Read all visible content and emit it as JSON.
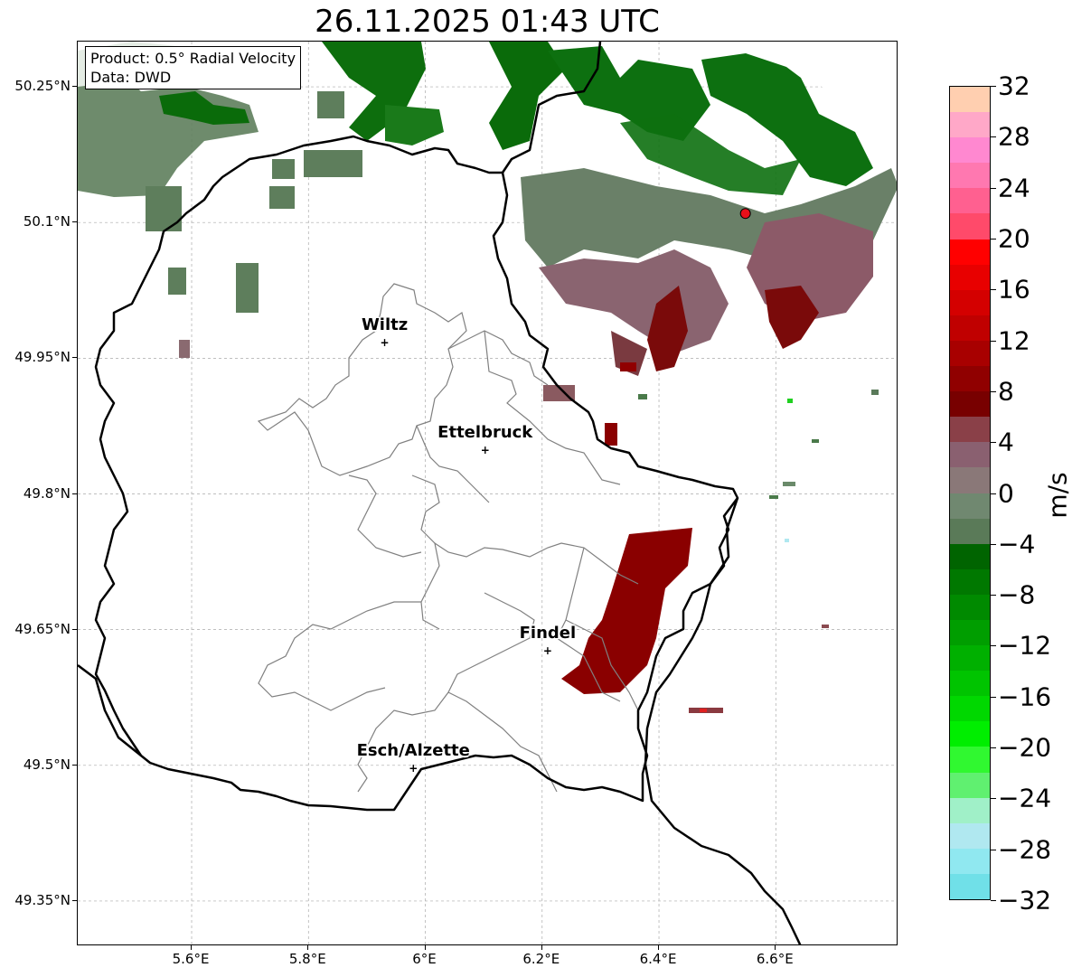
{
  "title": "26.11.2025 01:43 UTC",
  "info": {
    "product": "Product: 0.5° Radial Velocity",
    "data": "Data: DWD"
  },
  "y_ticks": [
    {
      "label": "50.25°N",
      "lat": 50.25
    },
    {
      "label": "50.1°N",
      "lat": 50.1
    },
    {
      "label": "49.95°N",
      "lat": 49.95
    },
    {
      "label": "49.8°N",
      "lat": 49.8
    },
    {
      "label": "49.65°N",
      "lat": 49.65
    },
    {
      "label": "49.5°N",
      "lat": 49.5
    },
    {
      "label": "49.35°N",
      "lat": 49.35
    }
  ],
  "x_ticks": [
    {
      "label": "5.6°E",
      "lon": 5.6
    },
    {
      "label": "5.8°E",
      "lon": 5.8
    },
    {
      "label": "6°E",
      "lon": 6.0
    },
    {
      "label": "6.2°E",
      "lon": 6.2
    },
    {
      "label": "6.4°E",
      "lon": 6.4
    },
    {
      "label": "6.6°E",
      "lon": 6.6
    }
  ],
  "cities": [
    {
      "name": "Wiltz",
      "lon": 5.932,
      "lat": 49.966
    },
    {
      "name": "Ettelbruck",
      "lon": 6.104,
      "lat": 49.847
    },
    {
      "name": "Findel",
      "lon": 6.211,
      "lat": 49.626
    },
    {
      "name": "Esch/Alzette",
      "lon": 5.981,
      "lat": 49.496
    }
  ],
  "radar_site": {
    "lon": 6.548,
    "lat": 50.11,
    "color": "#e8101a"
  },
  "extent": {
    "lon_min": 5.405,
    "lon_max": 6.81,
    "lat_min": 49.3,
    "lat_max": 50.3
  },
  "colorbar": {
    "unit": "m/s",
    "min": -32,
    "max": 32,
    "tick_labels": [
      "32",
      "28",
      "24",
      "20",
      "16",
      "12",
      "8",
      "4",
      "0",
      "−4",
      "−8",
      "−12",
      "−16",
      "−20",
      "−24",
      "−28",
      "−32"
    ],
    "tick_values": [
      32,
      28,
      24,
      20,
      16,
      12,
      8,
      4,
      0,
      -4,
      -8,
      -12,
      -16,
      -20,
      -24,
      -28,
      -32
    ],
    "colors_top_to_bottom": [
      "#ffcfb0",
      "#ffa8c8",
      "#ff88d0",
      "#ff78b0",
      "#ff6090",
      "#ff4a6a",
      "#ff0000",
      "#e80000",
      "#d40000",
      "#c00000",
      "#a80000",
      "#900000",
      "#780000",
      "#8a4048",
      "#8a6070",
      "#8a7878",
      "#708870",
      "#5a7a58",
      "#006400",
      "#007800",
      "#008a00",
      "#009e00",
      "#00b000",
      "#00c400",
      "#00d800",
      "#00ee00",
      "#30f830",
      "#60f070",
      "#a0f0c8",
      "#b0e8f0",
      "#90e8f0",
      "#70e0e8"
    ]
  }
}
